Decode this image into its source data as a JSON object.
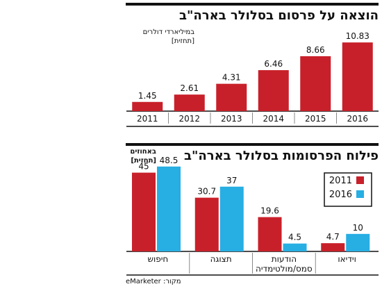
{
  "source_label": "מקור: eMarketer",
  "colors": {
    "red": "#c8202a",
    "blue": "#27aee3",
    "axis": "#111111"
  },
  "chart_data": [
    {
      "type": "bar",
      "title": "הוצאה על פרסום בסלולר בארה\"ב",
      "unit_label": "במיליארדי דולרים [תחזית]",
      "categories": [
        "2011",
        "2012",
        "2013",
        "2014",
        "2015",
        "2016"
      ],
      "values": [
        1.45,
        2.61,
        4.31,
        6.46,
        8.66,
        10.83
      ],
      "ylim": [
        0,
        11.5
      ],
      "grid": false
    },
    {
      "type": "bar",
      "title": "פילוח הפרסומות בסלולר בארה\"ב",
      "unit_label": "באחוזים [תחזית]",
      "categories": [
        "חיפוש",
        "תצוגה",
        "הודעות סמס/מולטימדיה",
        "וידיאו"
      ],
      "series": [
        {
          "name": "2011",
          "values": [
            45,
            30.7,
            19.6,
            4.7
          ]
        },
        {
          "name": "2016",
          "values": [
            48.5,
            37,
            4.5,
            10
          ]
        }
      ],
      "ylim": [
        0,
        50
      ],
      "legend": "top-right",
      "grid": false
    }
  ]
}
